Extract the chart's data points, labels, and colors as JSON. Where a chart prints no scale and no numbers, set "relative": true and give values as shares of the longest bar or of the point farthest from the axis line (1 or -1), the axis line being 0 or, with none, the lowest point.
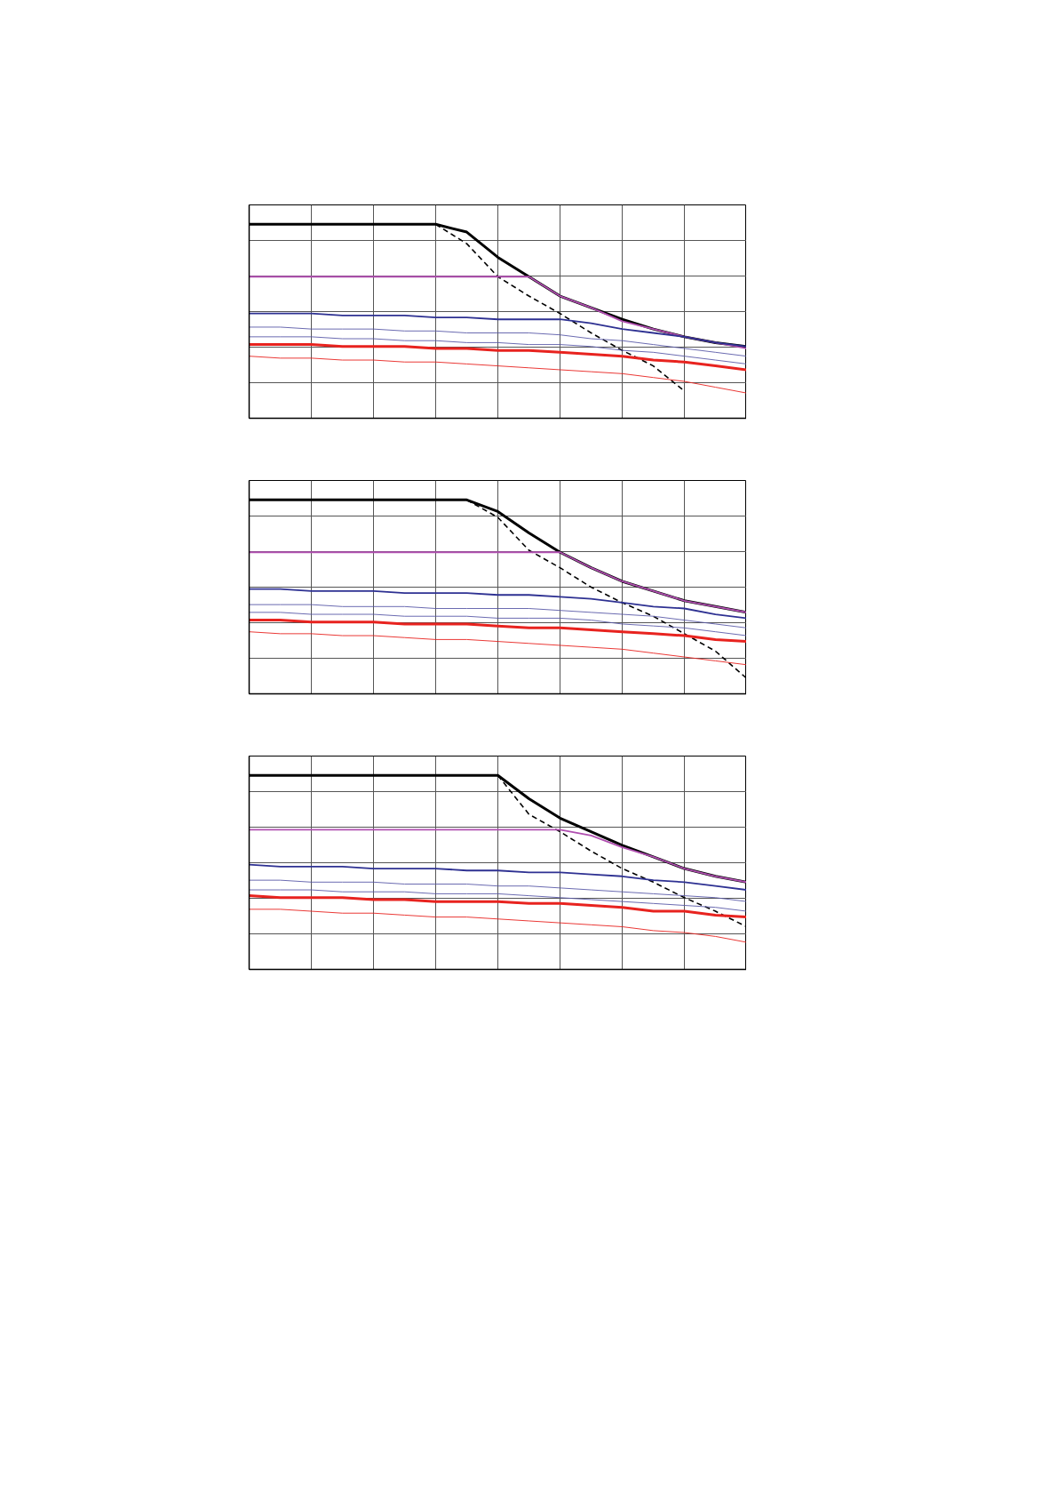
{
  "chart_data": [
    {
      "type": "line",
      "relative": true,
      "grid": true,
      "categories": [
        null,
        null,
        null,
        null,
        null,
        null,
        null,
        null,
        null,
        null,
        null,
        null,
        null,
        null,
        null,
        null,
        null
      ],
      "series": [
        {
          "color": "#000000",
          "values": [
            1,
            1,
            1,
            1,
            1,
            1,
            1,
            0.96,
            0.83,
            0.73,
            0.63,
            0.57,
            0.51,
            0.46,
            0.42,
            0.39,
            0.37
          ]
        },
        {
          "color": "#000000",
          "line_style": "dashed",
          "values": [
            null,
            null,
            null,
            null,
            null,
            null,
            1,
            0.9,
            0.73,
            0.63,
            0.54,
            0.44,
            0.35,
            0.27,
            0.14,
            null,
            null
          ]
        },
        {
          "color": "#b04fb0",
          "values": [
            0.73,
            0.73,
            0.73,
            0.73,
            0.73,
            0.73,
            0.73,
            0.73,
            0.73,
            0.73,
            0.63,
            0.57,
            0.5,
            0.46,
            0.42,
            0.39,
            0.36
          ]
        },
        {
          "color": "#2e3192",
          "values": [
            0.54,
            0.54,
            0.54,
            0.53,
            0.53,
            0.53,
            0.52,
            0.52,
            0.51,
            0.51,
            0.51,
            0.49,
            0.46,
            0.44,
            0.42,
            0.39,
            0.37
          ]
        },
        {
          "color": "#5a5aa8",
          "values": [
            0.47,
            0.47,
            0.46,
            0.46,
            0.46,
            0.45,
            0.45,
            0.44,
            0.44,
            0.44,
            0.43,
            0.41,
            0.4,
            0.38,
            0.36,
            0.34,
            0.32
          ]
        },
        {
          "color": "#5a5aa8",
          "values": [
            0.42,
            0.42,
            0.42,
            0.41,
            0.41,
            0.4,
            0.4,
            0.39,
            0.39,
            0.38,
            0.38,
            0.37,
            0.35,
            0.34,
            0.32,
            0.3,
            0.28
          ]
        },
        {
          "color": "#e8231f",
          "values": [
            0.38,
            0.38,
            0.38,
            0.37,
            0.37,
            0.37,
            0.36,
            0.36,
            0.35,
            0.35,
            0.34,
            0.33,
            0.32,
            0.3,
            0.29,
            0.27,
            0.25
          ]
        },
        {
          "color": "#e8231f",
          "values": [
            0.32,
            0.31,
            0.31,
            0.3,
            0.3,
            0.29,
            0.29,
            0.28,
            0.27,
            0.26,
            0.25,
            0.24,
            0.23,
            0.21,
            0.19,
            0.16,
            0.13
          ]
        }
      ]
    },
    {
      "type": "line",
      "relative": true,
      "grid": true,
      "categories": [
        null,
        null,
        null,
        null,
        null,
        null,
        null,
        null,
        null,
        null,
        null,
        null,
        null,
        null,
        null,
        null,
        null
      ],
      "series": [
        {
          "color": "#000000",
          "values": [
            1,
            1,
            1,
            1,
            1,
            1,
            1,
            1,
            0.94,
            0.83,
            0.73,
            0.65,
            0.58,
            0.53,
            0.48,
            0.45,
            0.42
          ]
        },
        {
          "color": "#000000",
          "line_style": "dashed",
          "values": [
            null,
            null,
            null,
            null,
            null,
            null,
            null,
            1,
            0.91,
            0.74,
            0.65,
            0.55,
            0.47,
            0.4,
            0.31,
            0.22,
            0.08
          ]
        },
        {
          "color": "#b04fb0",
          "values": [
            0.73,
            0.73,
            0.73,
            0.73,
            0.73,
            0.73,
            0.73,
            0.73,
            0.73,
            0.73,
            0.73,
            0.65,
            0.58,
            0.53,
            0.48,
            0.45,
            0.42
          ]
        },
        {
          "color": "#2e3192",
          "values": [
            0.54,
            0.54,
            0.53,
            0.53,
            0.53,
            0.52,
            0.52,
            0.52,
            0.51,
            0.51,
            0.5,
            0.49,
            0.47,
            0.45,
            0.44,
            0.41,
            0.39
          ]
        },
        {
          "color": "#5a5aa8",
          "values": [
            0.46,
            0.46,
            0.46,
            0.45,
            0.45,
            0.45,
            0.44,
            0.44,
            0.44,
            0.44,
            0.43,
            0.42,
            0.41,
            0.4,
            0.38,
            0.36,
            0.34
          ]
        },
        {
          "color": "#5a5aa8",
          "values": [
            0.42,
            0.42,
            0.41,
            0.41,
            0.41,
            0.4,
            0.4,
            0.4,
            0.39,
            0.39,
            0.39,
            0.38,
            0.36,
            0.35,
            0.34,
            0.32,
            0.3
          ]
        },
        {
          "color": "#e8231f",
          "values": [
            0.38,
            0.38,
            0.37,
            0.37,
            0.37,
            0.36,
            0.36,
            0.36,
            0.35,
            0.34,
            0.34,
            0.33,
            0.32,
            0.31,
            0.3,
            0.28,
            0.27
          ]
        },
        {
          "color": "#e8231f",
          "values": [
            0.32,
            0.31,
            0.31,
            0.3,
            0.3,
            0.29,
            0.28,
            0.28,
            0.27,
            0.26,
            0.25,
            0.24,
            0.23,
            0.21,
            0.19,
            0.17,
            0.15
          ]
        }
      ]
    },
    {
      "type": "line",
      "relative": true,
      "grid": true,
      "categories": [
        null,
        null,
        null,
        null,
        null,
        null,
        null,
        null,
        null,
        null,
        null,
        null,
        null,
        null,
        null,
        null,
        null
      ],
      "series": [
        {
          "color": "#000000",
          "values": [
            1,
            1,
            1,
            1,
            1,
            1,
            1,
            1,
            1,
            0.88,
            0.78,
            0.71,
            0.64,
            0.58,
            0.52,
            0.48,
            0.45
          ]
        },
        {
          "color": "#000000",
          "line_style": "dashed",
          "values": [
            null,
            null,
            null,
            null,
            null,
            null,
            null,
            null,
            1,
            0.8,
            0.71,
            0.61,
            0.52,
            0.45,
            0.37,
            0.3,
            0.22
          ]
        },
        {
          "color": "#b04fb0",
          "values": [
            0.72,
            0.72,
            0.72,
            0.72,
            0.72,
            0.72,
            0.72,
            0.72,
            0.72,
            0.72,
            0.72,
            0.69,
            0.63,
            0.58,
            0.52,
            0.48,
            0.45
          ]
        },
        {
          "color": "#2e3192",
          "values": [
            0.54,
            0.53,
            0.53,
            0.53,
            0.52,
            0.52,
            0.52,
            0.51,
            0.51,
            0.5,
            0.5,
            0.49,
            0.48,
            0.46,
            0.45,
            0.43,
            0.41
          ]
        },
        {
          "color": "#5a5aa8",
          "values": [
            0.46,
            0.46,
            0.45,
            0.45,
            0.45,
            0.44,
            0.44,
            0.44,
            0.43,
            0.43,
            0.42,
            0.41,
            0.4,
            0.39,
            0.38,
            0.37,
            0.35
          ]
        },
        {
          "color": "#5a5aa8",
          "values": [
            0.41,
            0.41,
            0.41,
            0.4,
            0.4,
            0.4,
            0.39,
            0.39,
            0.39,
            0.38,
            0.37,
            0.36,
            0.35,
            0.34,
            0.33,
            0.32,
            0.3
          ]
        },
        {
          "color": "#e8231f",
          "values": [
            0.38,
            0.37,
            0.37,
            0.37,
            0.36,
            0.36,
            0.35,
            0.35,
            0.35,
            0.34,
            0.34,
            0.33,
            0.32,
            0.3,
            0.3,
            0.28,
            0.27
          ]
        },
        {
          "color": "#e8231f",
          "values": [
            0.31,
            0.31,
            0.3,
            0.29,
            0.29,
            0.28,
            0.27,
            0.27,
            0.26,
            0.25,
            0.24,
            0.23,
            0.22,
            0.2,
            0.19,
            0.17,
            0.14
          ]
        }
      ]
    }
  ]
}
